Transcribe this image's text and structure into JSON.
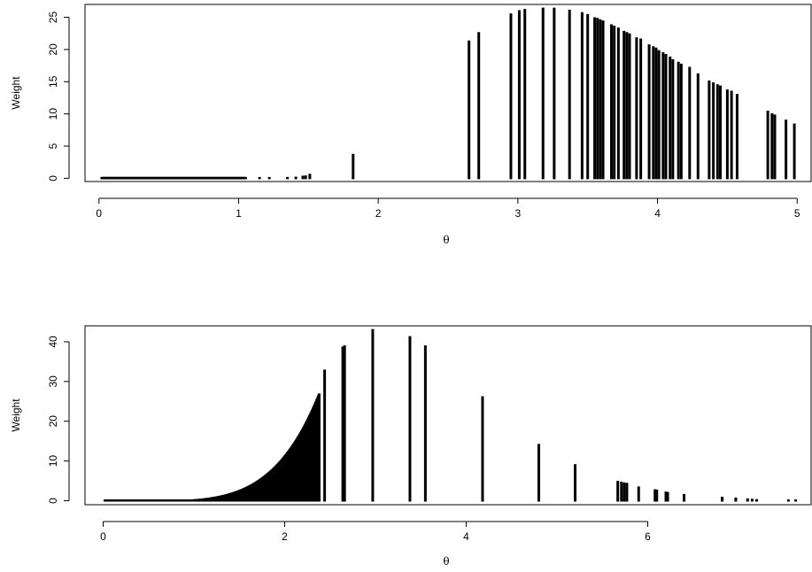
{
  "chart_data": [
    {
      "type": "bar",
      "xlabel": "θ",
      "ylabel": "Weight",
      "xlim": [
        -0.1,
        5.1
      ],
      "ylim": [
        -0.5,
        27.0
      ],
      "x_ticks": [
        0,
        1,
        2,
        3,
        4,
        5
      ],
      "y_ticks": [
        0,
        5,
        10,
        15,
        20,
        25
      ],
      "grid": false,
      "cluster": {
        "x_from": 0.02,
        "x_to": 1.05,
        "count": 200,
        "x_scale": 1.2,
        "y_max": 0.06,
        "power": 3
      },
      "x": [
        1.15,
        1.22,
        1.35,
        1.41,
        1.46,
        1.48,
        1.51,
        1.82,
        2.65,
        2.72,
        2.95,
        3.01,
        3.05,
        3.18,
        3.26,
        3.37,
        3.46,
        3.5,
        3.55,
        3.57,
        3.59,
        3.61,
        3.67,
        3.69,
        3.72,
        3.76,
        3.78,
        3.8,
        3.85,
        3.88,
        3.94,
        3.97,
        3.99,
        4.01,
        4.04,
        4.06,
        4.09,
        4.11,
        4.15,
        4.17,
        4.23,
        4.29,
        4.37,
        4.4,
        4.43,
        4.45,
        4.5,
        4.53,
        4.57,
        4.79,
        4.82,
        4.84,
        4.92,
        4.98
      ],
      "values": [
        0.05,
        0.08,
        0.15,
        0.25,
        0.4,
        0.45,
        0.7,
        3.8,
        21.4,
        22.7,
        25.6,
        26.1,
        26.3,
        26.5,
        26.5,
        26.2,
        25.8,
        25.5,
        25.0,
        24.9,
        24.7,
        24.5,
        23.9,
        23.7,
        23.4,
        22.9,
        22.7,
        22.5,
        21.9,
        21.7,
        20.8,
        20.5,
        20.3,
        19.9,
        19.6,
        19.3,
        18.9,
        18.5,
        18.1,
        17.8,
        17.3,
        16.3,
        15.2,
        14.9,
        14.6,
        14.4,
        13.8,
        13.6,
        13.1,
        10.5,
        10.1,
        9.9,
        9.1,
        8.5
      ]
    },
    {
      "type": "bar",
      "xlabel": "θ",
      "ylabel": "Weight",
      "xlim": [
        -0.2,
        7.8
      ],
      "ylim": [
        -1.0,
        44.0
      ],
      "x_ticks": [
        0,
        2,
        4,
        6
      ],
      "y_ticks": [
        0,
        10,
        20,
        30,
        40
      ],
      "grid": false,
      "cluster": {
        "x_from": 0.02,
        "x_to": 2.38,
        "count": 420,
        "x_scale": 2.6,
        "y_max": 42.0,
        "power": 5
      },
      "x": [
        2.44,
        2.64,
        2.66,
        2.97,
        3.38,
        3.55,
        4.18,
        4.8,
        5.2,
        5.67,
        5.71,
        5.74,
        5.77,
        5.9,
        6.08,
        6.1,
        6.2,
        6.22,
        6.4,
        6.82,
        6.97,
        7.1,
        7.15,
        7.2,
        7.55,
        7.63
      ],
      "values": [
        33.0,
        38.8,
        39.1,
        43.2,
        41.4,
        39.1,
        26.3,
        14.3,
        9.2,
        5.0,
        4.8,
        4.6,
        4.5,
        3.6,
        2.9,
        2.8,
        2.3,
        2.2,
        1.7,
        1.0,
        0.8,
        0.6,
        0.5,
        0.4,
        0.15,
        0.12
      ]
    }
  ]
}
